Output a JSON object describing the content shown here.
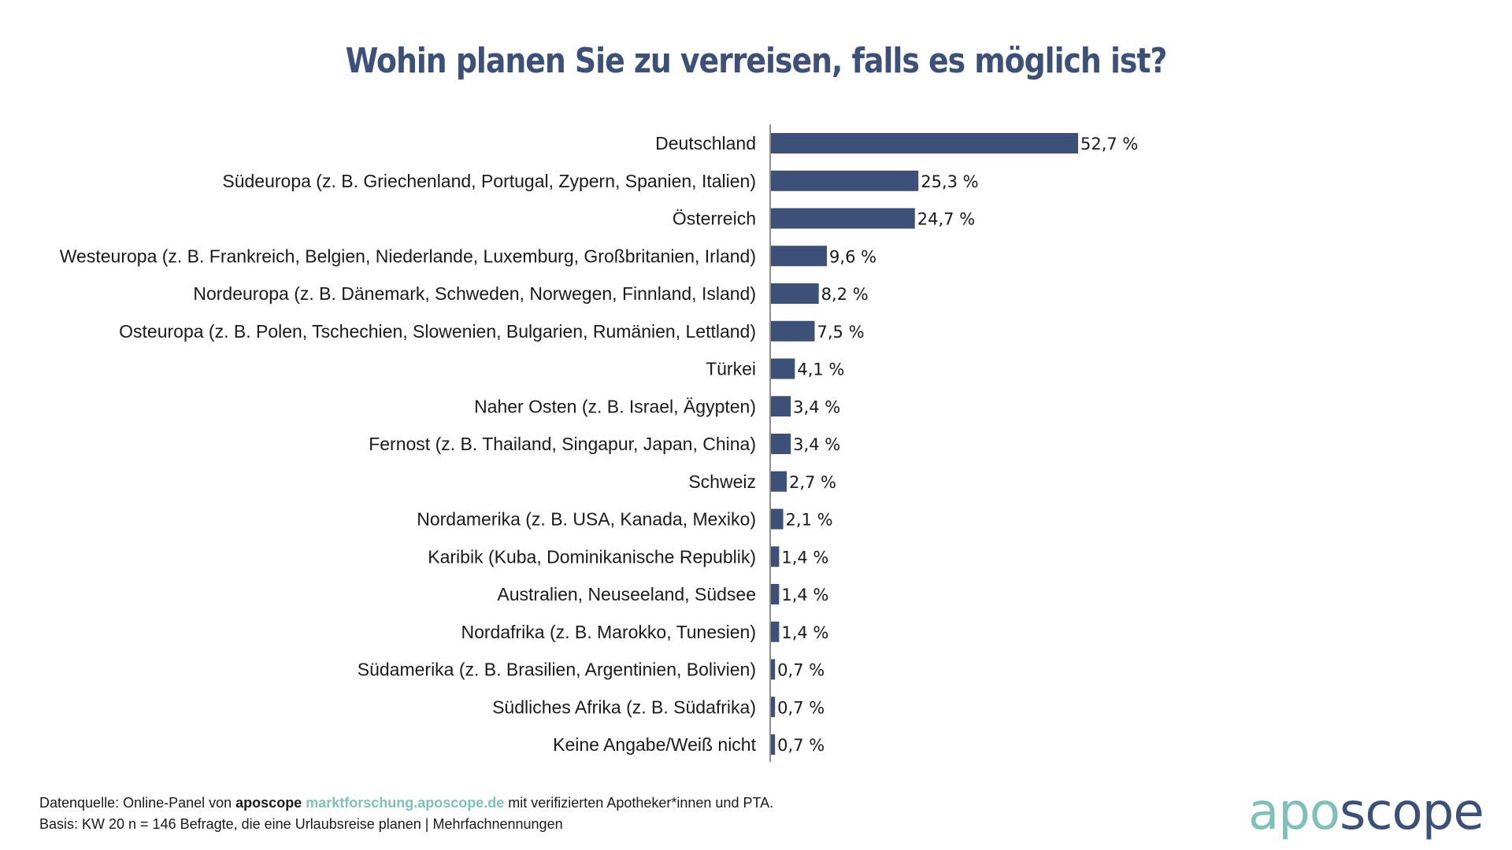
{
  "chart_data": {
    "type": "bar",
    "orientation": "horizontal",
    "title": "Wohin planen Sie zu verreisen, falls es möglich ist?",
    "xlabel": "",
    "ylabel": "",
    "xlim": [
      0,
      52.7
    ],
    "grid": false,
    "bar_color": "#3d5078",
    "categories": [
      "Deutschland",
      "Südeuropa (z. B. Griechenland, Portugal, Zypern, Spanien, Italien)",
      "Österreich",
      "Westeuropa (z. B. Frankreich, Belgien, Niederlande, Luxemburg, Großbritanien, Irland)",
      "Nordeuropa (z. B. Dänemark, Schweden, Norwegen, Finnland, Island)",
      "Osteuropa (z. B. Polen, Tschechien, Slowenien, Bulgarien, Rumänien, Lettland)",
      "Türkei",
      "Naher Osten (z. B. Israel, Ägypten)",
      "Fernost (z. B. Thailand, Singapur, Japan, China)",
      "Schweiz",
      "Nordamerika (z. B. USA, Kanada, Mexiko)",
      "Karibik (Kuba, Dominikanische Republik)",
      "Australien, Neuseeland, Südsee",
      "Nordafrika (z. B. Marokko, Tunesien)",
      "Südamerika (z. B. Brasilien, Argentinien, Bolivien)",
      "Südliches Afrika (z. B. Südafrika)",
      "Keine Angabe/Weiß nicht"
    ],
    "values": [
      52.7,
      25.3,
      24.7,
      9.6,
      8.2,
      7.5,
      4.1,
      3.4,
      3.4,
      2.7,
      2.1,
      1.4,
      1.4,
      1.4,
      0.7,
      0.7,
      0.7
    ],
    "value_labels": [
      "52,7 %",
      "25,3 %",
      "24,7 %",
      "9,6 %",
      "8,2 %",
      "7,5 %",
      "4,1 %",
      "3,4 %",
      "3,4 %",
      "2,7 %",
      "2,1 %",
      "1,4 %",
      "1,4 %",
      "1,4 %",
      "0,7 %",
      "0,7 %",
      "0,7 %"
    ]
  },
  "footer": {
    "source_prefix": "Datenquelle: Online-Panel von ",
    "source_brand": "aposcope",
    "source_link": "marktforschung.aposcope.de",
    "source_suffix": " mit verifizierten Apotheker*innen und PTA.",
    "basis": "Basis: KW 20 n = 146 Befragte, die eine Urlaubsreise planen | Mehrfachnennungen"
  },
  "logo": {
    "part1": "apo",
    "part2": "scope",
    "color1": "#7fc1b8",
    "color2": "#3d5078"
  }
}
